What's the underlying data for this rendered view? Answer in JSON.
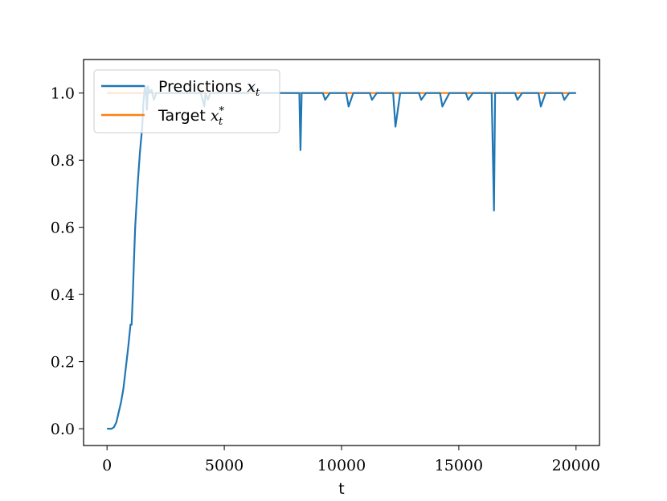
{
  "chart_data": {
    "type": "line",
    "title": "",
    "xlabel": "t",
    "ylabel": "",
    "xlim": [
      -1000,
      21000
    ],
    "ylim": [
      -0.05,
      1.1
    ],
    "xticks": [
      0,
      5000,
      10000,
      15000,
      20000
    ],
    "xtick_labels": [
      "0",
      "5000",
      "10000",
      "15000",
      "20000"
    ],
    "yticks": [
      0.0,
      0.2,
      0.4,
      0.6,
      0.8,
      1.0
    ],
    "ytick_labels": [
      "0.0",
      "0.2",
      "0.4",
      "0.6",
      "0.8",
      "1.0"
    ],
    "grid": false,
    "legend_position": "top-left",
    "series": [
      {
        "name": "Predictions",
        "name_math": "x",
        "name_sub": "t",
        "name_sup": "",
        "color": "#1f77b4",
        "x": [
          0,
          200,
          300,
          400,
          500,
          600,
          700,
          800,
          900,
          1000,
          1050,
          1100,
          1150,
          1200,
          1300,
          1400,
          1500,
          1550,
          1600,
          1650,
          1700,
          1750,
          1800,
          1900,
          2000,
          2100,
          2200,
          2500,
          3000,
          3500,
          4000,
          4150,
          4200,
          4300,
          4400,
          4600,
          5000,
          5500,
          6000,
          6200,
          6300,
          6500,
          7000,
          7600,
          8000,
          8200,
          8250,
          8300,
          8500,
          9000,
          9200,
          9300,
          9500,
          10000,
          10200,
          10300,
          10500,
          11000,
          11200,
          11300,
          11500,
          12000,
          12200,
          12300,
          12500,
          13000,
          13300,
          13400,
          13600,
          14000,
          14200,
          14300,
          14600,
          15000,
          15300,
          15400,
          15600,
          16000,
          16300,
          16400,
          16500,
          16550,
          16600,
          16800,
          17000,
          17400,
          17500,
          17700,
          18000,
          18400,
          18500,
          18700,
          19000,
          19400,
          19500,
          19700,
          20000
        ],
        "y": [
          0.0,
          0.0,
          0.005,
          0.02,
          0.05,
          0.08,
          0.12,
          0.18,
          0.24,
          0.31,
          0.31,
          0.4,
          0.5,
          0.6,
          0.72,
          0.82,
          0.9,
          0.97,
          1.01,
          1.02,
          0.95,
          1.02,
          1.0,
          1.01,
          0.98,
          1.0,
          1.0,
          1.0,
          1.0,
          1.0,
          1.0,
          0.96,
          1.0,
          0.98,
          1.0,
          1.0,
          1.0,
          1.0,
          1.0,
          1.02,
          1.0,
          1.0,
          1.0,
          1.0,
          1.0,
          1.0,
          0.83,
          1.0,
          1.0,
          1.0,
          1.0,
          0.98,
          1.0,
          1.0,
          1.0,
          0.96,
          1.0,
          1.0,
          1.0,
          0.98,
          1.0,
          1.0,
          1.0,
          0.9,
          1.0,
          1.0,
          1.0,
          0.98,
          1.0,
          1.0,
          1.0,
          0.96,
          1.0,
          1.0,
          1.0,
          0.98,
          1.0,
          1.0,
          1.0,
          1.0,
          0.65,
          1.0,
          1.0,
          1.0,
          1.0,
          1.0,
          0.98,
          1.0,
          1.0,
          1.0,
          0.96,
          1.0,
          1.0,
          1.0,
          0.98,
          1.0,
          1.0
        ]
      },
      {
        "name": "Target",
        "name_math": "x",
        "name_sub": "t",
        "name_sup": "*",
        "color": "#ff7f0e",
        "x": [
          0,
          20000
        ],
        "y": [
          1.0,
          1.0
        ]
      }
    ]
  }
}
